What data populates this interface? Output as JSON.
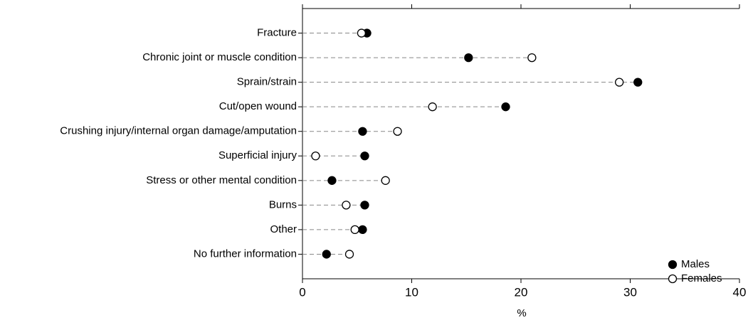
{
  "chart_data": {
    "type": "dot",
    "categories": [
      "Fracture",
      "Chronic joint or muscle condition",
      "Sprain/strain",
      "Cut/open wound",
      "Crushing injury/internal organ damage/amputation",
      "Superficial injury",
      "Stress or other mental condition",
      "Burns",
      "Other",
      "No further information"
    ],
    "series": [
      {
        "name": "Males",
        "color": "#000000",
        "values": [
          5.9,
          15.2,
          30.7,
          18.6,
          5.5,
          5.7,
          2.7,
          5.7,
          5.5,
          2.2
        ]
      },
      {
        "name": "Females",
        "color": "#ffffff",
        "values": [
          5.4,
          21.0,
          29.0,
          11.9,
          8.7,
          1.2,
          7.6,
          4.0,
          4.8,
          4.3
        ]
      }
    ],
    "xlabel": "%",
    "xlim": [
      0,
      40
    ],
    "xticks": [
      0,
      10,
      20,
      30,
      40
    ],
    "legend": "bottom-right"
  }
}
